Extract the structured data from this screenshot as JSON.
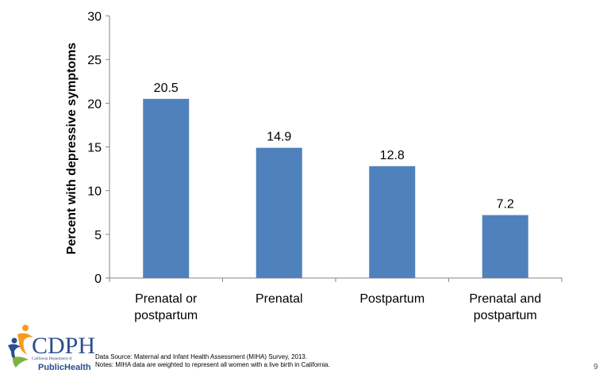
{
  "chart_data": {
    "type": "bar",
    "categories": [
      [
        "Prenatal or",
        "postpartum"
      ],
      [
        "Prenatal"
      ],
      [
        "Postpartum"
      ],
      [
        "Prenatal and",
        "postpartum"
      ]
    ],
    "values": [
      20.5,
      14.9,
      12.8,
      7.2
    ],
    "data_labels": [
      "20.5",
      "14.9",
      "12.8",
      "7.2"
    ],
    "ylabel": "Percent with depressive symptoms",
    "xlabel": "",
    "ylim": [
      0,
      30
    ],
    "yticks": [
      0,
      5,
      10,
      15,
      20,
      25,
      30
    ],
    "bar_color": "#4f81bd",
    "grid": false,
    "legend": "none"
  },
  "footer": {
    "source": "Data Source: Maternal and Infant Health Assessment (MIHA) Survey, 2013.",
    "notes": "Notes: MIHA data are weighted to represent all women with a live birth in California.",
    "page_number": "9"
  },
  "logo": {
    "wordmark": "CDPH",
    "subtitle": "California Department of",
    "name": "PublicHealth",
    "colors": {
      "primary": "#2a4f8f",
      "accent": "#f39c1f",
      "green": "#7cb342"
    }
  }
}
